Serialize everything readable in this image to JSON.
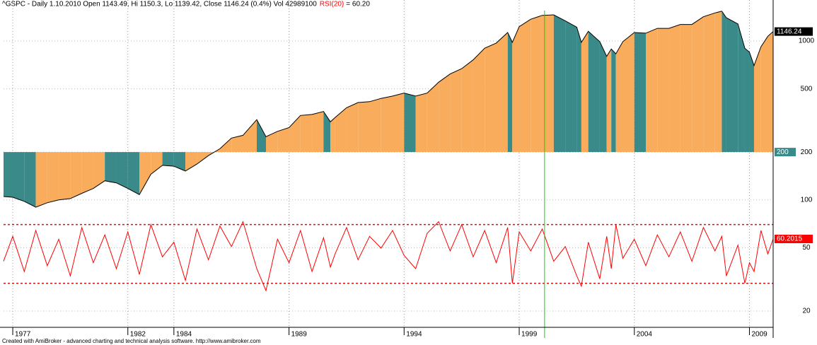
{
  "chart_data": {
    "type": "line",
    "title": "^GSPC - Daily 1.10.2010 Open 1143.49, Hi 1150.3, Lo 1139.42, Close 1146.24 (0.4%) Vol 42989100",
    "indicator_name": "RSI(20)",
    "indicator_text": "= 60.20",
    "footer": "Created with AmiBroker - advanced charting and technical analysis software. http://www.amibroker.com",
    "log_scale": true,
    "grid": true,
    "x": [
      1976.6,
      1977,
      1977.5,
      1978,
      1978.5,
      1979,
      1979.5,
      1980,
      1980.5,
      1981,
      1981.5,
      1982,
      1982.5,
      1983,
      1983.5,
      1984,
      1984.5,
      1985,
      1985.5,
      1986,
      1986.5,
      1987,
      1987.6,
      1988,
      1988.5,
      1989,
      1989.5,
      1990,
      1990.5,
      1990.8,
      1991,
      1991.5,
      1992,
      1992.5,
      1993,
      1993.5,
      1994,
      1994.5,
      1995,
      1995.5,
      1996,
      1996.5,
      1997,
      1997.5,
      1998,
      1998.5,
      1998.7,
      1999,
      1999.5,
      2000,
      2000.5,
      2001,
      2001.5,
      2001.7,
      2002,
      2002.5,
      2002.8,
      2003,
      2003.2,
      2003.5,
      2004,
      2004.5,
      2005,
      2005.5,
      2006,
      2006.5,
      2007,
      2007.5,
      2007.8,
      2008,
      2008.5,
      2008.8,
      2009,
      2009.2,
      2009.5,
      2009.8,
      2010.03
    ],
    "xlim": [
      1976.6,
      2010.03
    ],
    "xticks": [
      1977,
      1982,
      1984,
      1989,
      1994,
      1999,
      2004,
      2009
    ],
    "ylim": [
      15.8,
      1810
    ],
    "yticks": [
      20,
      50,
      100,
      200,
      500,
      1000
    ],
    "y2lim": [
      0,
      223
    ],
    "base": 200,
    "up_color": "#f8ac5c",
    "down_color": "#3a8a8a",
    "levels": [
      30,
      70
    ],
    "cursor": 2000.1,
    "series": [
      {
        "name": "^GSPC",
        "color": "#000000",
        "values": [
          105,
          104,
          98,
          90,
          96,
          100,
          102,
          110,
          118,
          132,
          128,
          118,
          108,
          145,
          165,
          163,
          152,
          168,
          190,
          210,
          245,
          255,
          320,
          250,
          270,
          285,
          340,
          345,
          360,
          310,
          330,
          380,
          410,
          415,
          435,
          450,
          470,
          450,
          470,
          550,
          620,
          670,
          760,
          900,
          970,
          1130,
          980,
          1230,
          1370,
          1450,
          1460,
          1340,
          1220,
          980,
          1150,
          990,
          800,
          890,
          830,
          990,
          1130,
          1120,
          1200,
          1200,
          1270,
          1270,
          1420,
          1500,
          1540,
          1400,
          1280,
          900,
          850,
          700,
          920,
          1070,
          1146.24
        ]
      },
      {
        "name": "RSI(20)",
        "color": "#ff0000",
        "axis": "y2",
        "values": [
          45,
          62,
          38,
          66,
          42,
          60,
          35,
          68,
          44,
          63,
          40,
          65,
          36,
          70,
          48,
          58,
          32,
          67,
          46,
          69,
          55,
          72,
          40,
          25,
          60,
          44,
          66,
          38,
          61,
          41,
          50,
          68,
          46,
          62,
          54,
          66,
          49,
          40,
          64,
          72,
          52,
          70,
          48,
          66,
          44,
          68,
          30,
          65,
          52,
          67,
          45,
          55,
          35,
          28,
          58,
          33,
          62,
          40,
          70,
          47,
          60,
          42,
          63,
          48,
          65,
          45,
          68,
          52,
          62,
          35,
          56,
          30,
          44,
          38,
          66,
          50,
          60.2015
        ]
      }
    ]
  }
}
